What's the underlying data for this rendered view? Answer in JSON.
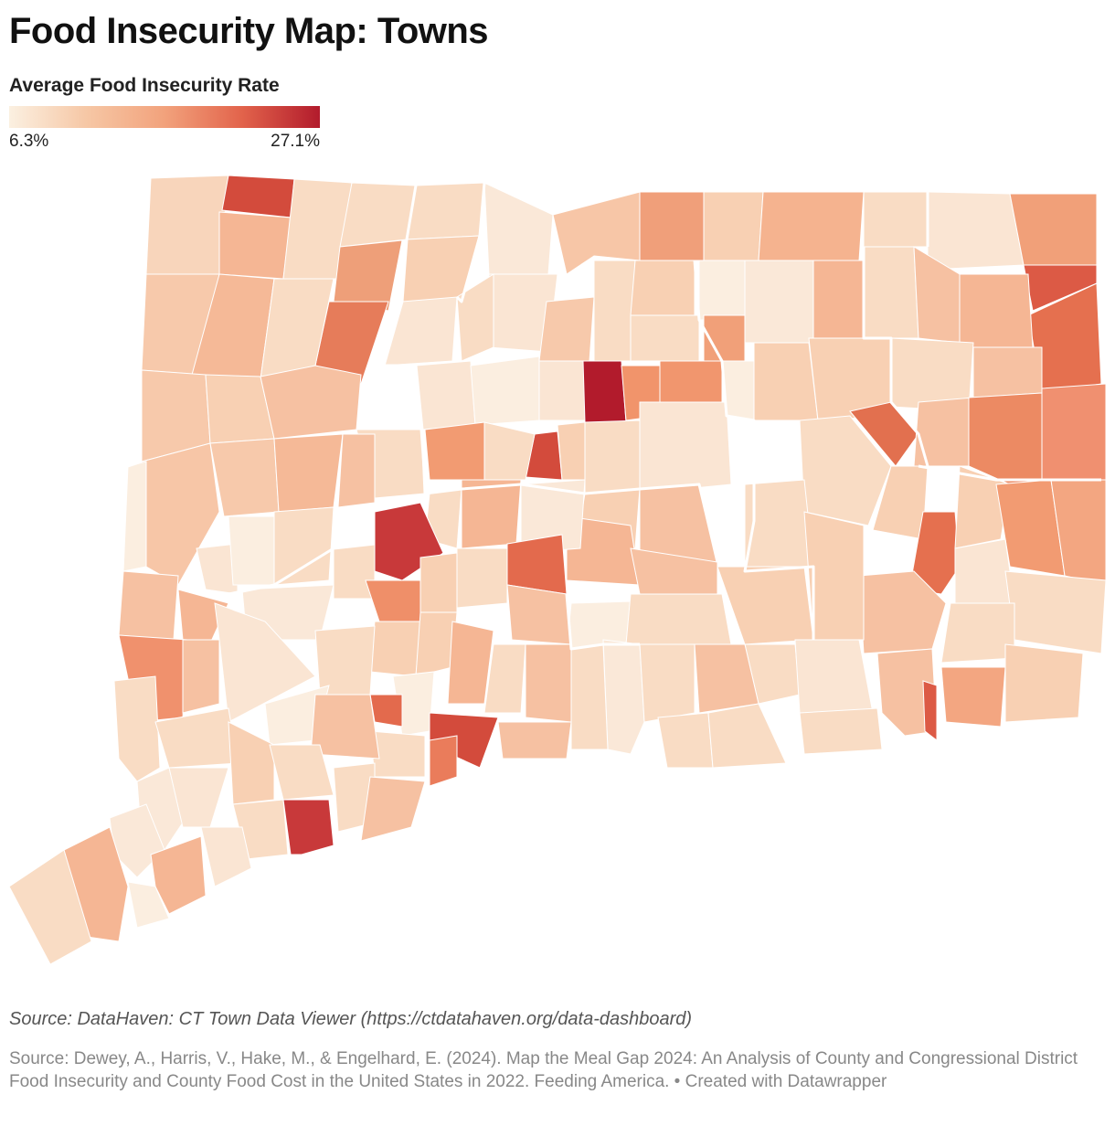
{
  "title": "Food Insecurity Map: Towns",
  "legend": {
    "title": "Average Food Insecurity Rate",
    "min_label": "6.3%",
    "max_label": "27.1%",
    "min_color": "#fbf0e1",
    "max_color": "#b21b2c"
  },
  "chart_data": {
    "type": "choropleth",
    "region": "Connecticut towns",
    "value_range": [
      6.3,
      27.1
    ],
    "color_scale": [
      "#fbf0e1",
      "#f6c7a5",
      "#f2a27c",
      "#e2634b",
      "#b21b2c"
    ]
  },
  "footer": {
    "source_line": "Source: DataHaven: CT Town Data Viewer (https://ctdatahaven.org/data-dashboard)",
    "citation": "Source: Dewey, A., Harris, V., Hake, M., & Engelhard, E. (2024). Map the Meal Gap 2024: An Analysis of County and Congressional District Food Insecurity and County Food Cost in the United States in 2022. Feeding America. • Created with Datawrapper"
  }
}
